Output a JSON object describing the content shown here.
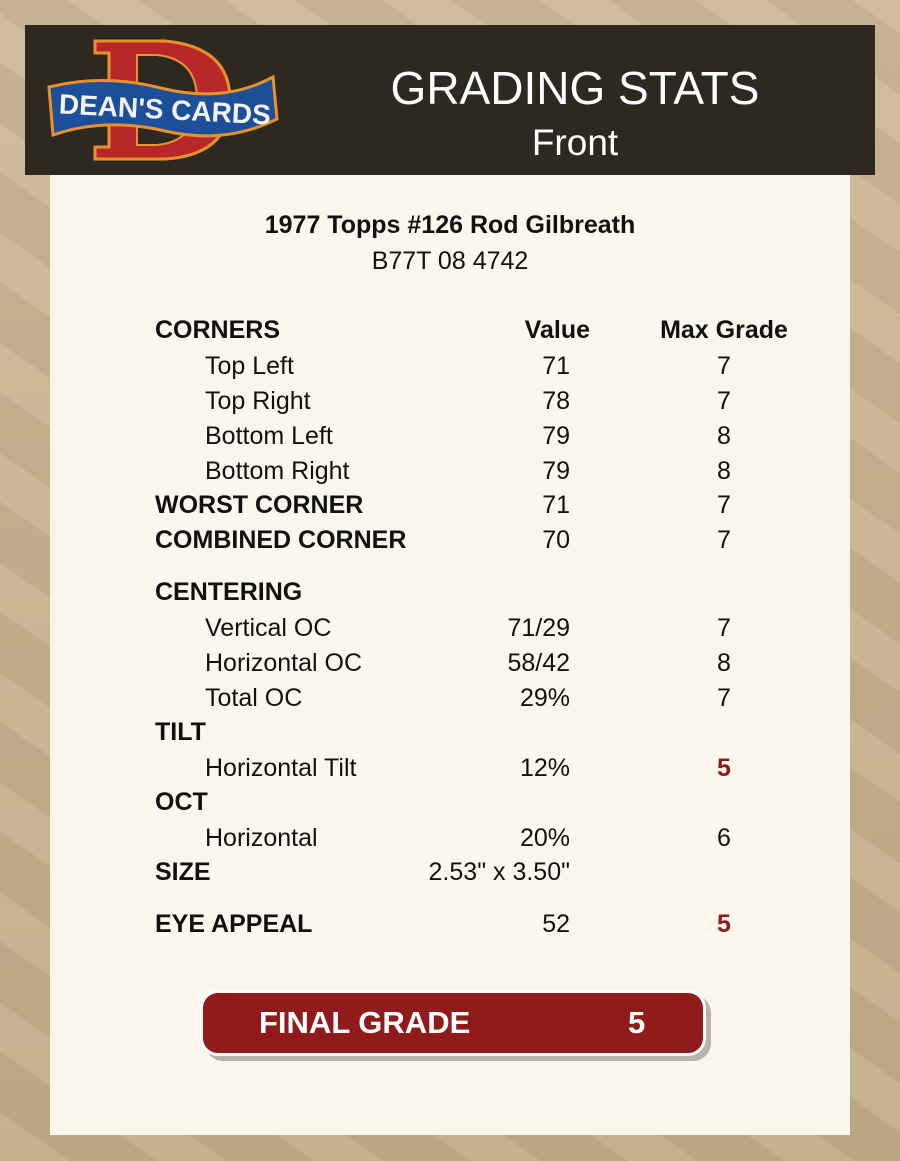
{
  "brand": {
    "logo_text": "DEAN'S CARDS",
    "colors": {
      "red": "#b8282a",
      "blue": "#1d4f99",
      "header": "#2d2820",
      "accent": "#911a1b"
    }
  },
  "header": {
    "title": "GRADING STATS",
    "subtitle": "Front"
  },
  "card": {
    "name": "1977 Topps #126 Rod Gilbreath",
    "cert": "B77T 08 4742"
  },
  "columns": {
    "value": "Value",
    "max": "Max Grade"
  },
  "rows": [
    {
      "label": "CORNERS"
    },
    {
      "label": "Top Left",
      "value": "71",
      "max": "7"
    },
    {
      "label": "Top Right",
      "value": "78",
      "max": "7"
    },
    {
      "label": "Bottom Left",
      "value": "79",
      "max": "8"
    },
    {
      "label": "Bottom Right",
      "value": "79",
      "max": "8"
    },
    {
      "label": "WORST CORNER",
      "value": "71",
      "max": "7"
    },
    {
      "label": "COMBINED CORNER",
      "value": "70",
      "max": "7"
    },
    {
      "label": "CENTERING"
    },
    {
      "label": "Vertical OC",
      "value": "71/29",
      "max": "7"
    },
    {
      "label": "Horizontal OC",
      "value": "58/42",
      "max": "8"
    },
    {
      "label": "Total OC",
      "value": "29%",
      "max": "7"
    },
    {
      "label": "TILT"
    },
    {
      "label": "Horizontal Tilt",
      "value": "12%",
      "max": "5"
    },
    {
      "label": "OCT"
    },
    {
      "label": "Horizontal",
      "value": "20%",
      "max": "6"
    },
    {
      "label": "SIZE",
      "value": "2.53\" x 3.50\""
    },
    {
      "label": "EYE APPEAL",
      "value": "52",
      "max": "5"
    }
  ],
  "final": {
    "label": "FINAL GRADE",
    "value": "5"
  }
}
